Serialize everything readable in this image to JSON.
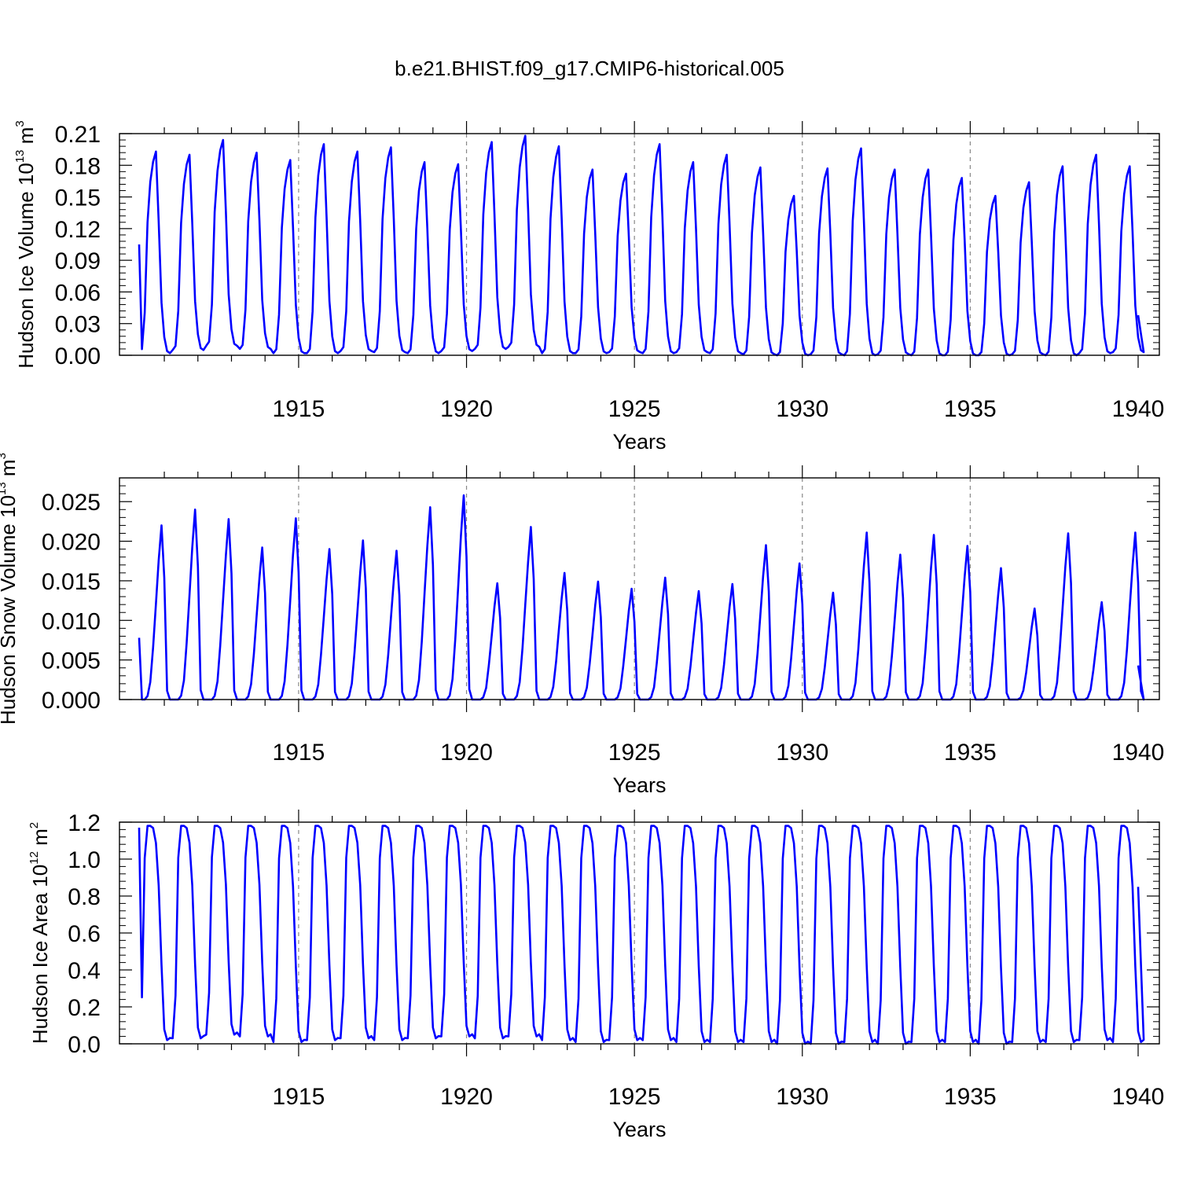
{
  "title": "b.e21.BHIST.f09_g17.CMIP6-historical.005",
  "chart_data": [
    {
      "type": "line",
      "name": "ice-volume",
      "ylabel": {
        "main": "Hudson Ice Volume 10",
        "exp": "13",
        "unit": " m",
        "unit_exp": "3"
      },
      "xlabel": "Years",
      "xlim": [
        1910.25,
        1940.0
      ],
      "ylim": [
        0.0,
        0.21
      ],
      "yticks": [
        0.0,
        0.03,
        0.06,
        0.09,
        0.12,
        0.15,
        0.18,
        0.21
      ],
      "ytick_labels": [
        "0.00",
        "0.03",
        "0.06",
        "0.09",
        "0.12",
        "0.15",
        "0.18",
        "0.21"
      ],
      "xticks": [
        1915,
        1920,
        1925,
        1930,
        1935,
        1940
      ],
      "xtick_labels": [
        "1915",
        "1920",
        "1925",
        "1930",
        "1935",
        "1940"
      ],
      "start": 1910.25,
      "step": 0.0833333,
      "amplitudes": [
        0.193,
        0.19,
        0.204,
        0.192,
        0.185,
        0.2,
        0.193,
        0.197,
        0.183,
        0.181,
        0.202,
        0.208,
        0.198,
        0.176,
        0.172,
        0.2,
        0.183,
        0.19,
        0.178,
        0.151,
        0.177,
        0.196,
        0.176,
        0.176,
        0.168,
        0.151,
        0.164,
        0.179,
        0.19,
        0.179
      ],
      "minimums": [
        0.002,
        0.005,
        0.009,
        0.006,
        0.002,
        0.002,
        0.004,
        0.003,
        0.002,
        0.004,
        0.006,
        0.008,
        0.002,
        0.002,
        0.003,
        0.002,
        0.003,
        0.002,
        0.001,
        0.0,
        0.001,
        0.0,
        0.001,
        0.0,
        0.0,
        0.0,
        0.001,
        0.0,
        0.002,
        0.003
      ],
      "shape": [
        0.0,
        0.02,
        0.2,
        0.65,
        0.85,
        0.95,
        1.0,
        0.65,
        0.25,
        0.08,
        0.01,
        0.0
      ],
      "line_color": "#0000ff"
    },
    {
      "type": "line",
      "name": "snow-volume",
      "ylabel": {
        "main": "Hudson Snow Volume 10",
        "exp": "13",
        "unit": " m",
        "unit_exp": "3"
      },
      "xlabel": "Years",
      "xlim": [
        1910.25,
        1940.0
      ],
      "ylim": [
        0.0,
        0.028
      ],
      "yticks": [
        0.0,
        0.005,
        0.01,
        0.015,
        0.02,
        0.025
      ],
      "ytick_labels": [
        "0.000",
        "0.005",
        "0.010",
        "0.015",
        "0.020",
        "0.025"
      ],
      "xticks": [
        1915,
        1920,
        1925,
        1930,
        1935,
        1940
      ],
      "xtick_labels": [
        "1915",
        "1920",
        "1925",
        "1930",
        "1935",
        "1940"
      ],
      "start": 1910.25,
      "step": 0.0833333,
      "amplitudes": [
        0.022,
        0.024,
        0.0228,
        0.0192,
        0.0229,
        0.019,
        0.0201,
        0.0188,
        0.0243,
        0.0258,
        0.0147,
        0.0218,
        0.016,
        0.0149,
        0.014,
        0.0154,
        0.0137,
        0.0146,
        0.0195,
        0.0172,
        0.0135,
        0.0211,
        0.0183,
        0.0208,
        0.0194,
        0.0166,
        0.0115,
        0.021,
        0.0123,
        0.0211
      ],
      "minimums": [
        0,
        0,
        0,
        0,
        0,
        0,
        0,
        0,
        0,
        0,
        0,
        0,
        0,
        0,
        0,
        0,
        0,
        0,
        0,
        0,
        0,
        0,
        0,
        0,
        0,
        0,
        0,
        0,
        0,
        0
      ],
      "shape": [
        0.0,
        0.0,
        0.0,
        0.02,
        0.1,
        0.3,
        0.55,
        0.8,
        1.0,
        0.7,
        0.05,
        0.0
      ],
      "line_color": "#0000ff"
    },
    {
      "type": "line",
      "name": "ice-area",
      "ylabel": {
        "main": "Hudson Ice Area 10",
        "exp": "12",
        "unit": " m",
        "unit_exp": "2"
      },
      "xlabel": "Years",
      "xlim": [
        1910.25,
        1940.0
      ],
      "ylim": [
        0.0,
        1.2
      ],
      "yticks": [
        0.0,
        0.2,
        0.4,
        0.6,
        0.8,
        1.0,
        1.2
      ],
      "ytick_labels": [
        "0.0",
        "0.2",
        "0.4",
        "0.6",
        "0.8",
        "1.0",
        "1.2"
      ],
      "xticks": [
        1915,
        1920,
        1925,
        1930,
        1935,
        1940
      ],
      "xtick_labels": [
        "1915",
        "1920",
        "1925",
        "1930",
        "1935",
        "1940"
      ],
      "start": 1910.25,
      "step": 0.0833333,
      "amplitudes": [
        1.18,
        1.18,
        1.18,
        1.18,
        1.18,
        1.18,
        1.18,
        1.18,
        1.18,
        1.18,
        1.18,
        1.18,
        1.18,
        1.18,
        1.18,
        1.18,
        1.18,
        1.18,
        1.18,
        1.18,
        1.18,
        1.18,
        1.18,
        1.18,
        1.18,
        1.18,
        1.18,
        1.18,
        1.18,
        1.18
      ],
      "minimums": [
        0.02,
        0.03,
        0.05,
        0.04,
        0.01,
        0.02,
        0.03,
        0.02,
        0.03,
        0.04,
        0.03,
        0.04,
        0.02,
        0.01,
        0.02,
        0.02,
        0.01,
        0.01,
        0.01,
        0.0,
        0.0,
        0.01,
        0.0,
        0.01,
        0.01,
        0.0,
        0.01,
        0.01,
        0.02,
        0.01
      ],
      "shape": [
        0.0,
        0.2,
        0.85,
        1.0,
        1.0,
        0.99,
        0.92,
        0.72,
        0.35,
        0.05,
        0.0,
        0.01
      ],
      "line_color": "#0000ff"
    }
  ]
}
